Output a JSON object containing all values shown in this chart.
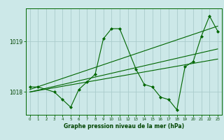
{
  "bg_color": "#cce8e8",
  "grid_color": "#aacccc",
  "line_color": "#006600",
  "marker_color": "#006600",
  "title": "Graphe pression niveau de la mer (hPa)",
  "title_color": "#004400",
  "ylabel_ticks": [
    1018,
    1019
  ],
  "xlim": [
    -0.5,
    23.5
  ],
  "ylim": [
    1017.55,
    1019.65
  ],
  "series": [
    {
      "x": [
        0,
        1,
        3,
        4,
        5,
        6,
        7,
        8,
        9,
        10,
        11,
        13,
        14,
        15,
        16,
        17,
        18,
        19,
        20,
        21,
        22,
        23
      ],
      "y": [
        1018.1,
        1018.1,
        1018.0,
        1017.85,
        1017.7,
        1018.05,
        1018.2,
        1018.35,
        1019.05,
        1019.25,
        1019.25,
        1018.45,
        1018.15,
        1018.1,
        1017.9,
        1017.85,
        1017.65,
        1018.5,
        1018.6,
        1019.1,
        1019.5,
        1019.2
      ]
    },
    {
      "x": [
        0,
        23
      ],
      "y": [
        1018.05,
        1019.3
      ]
    },
    {
      "x": [
        0,
        23
      ],
      "y": [
        1018.0,
        1018.85
      ]
    },
    {
      "x": [
        0,
        23
      ],
      "y": [
        1018.0,
        1018.65
      ]
    }
  ]
}
